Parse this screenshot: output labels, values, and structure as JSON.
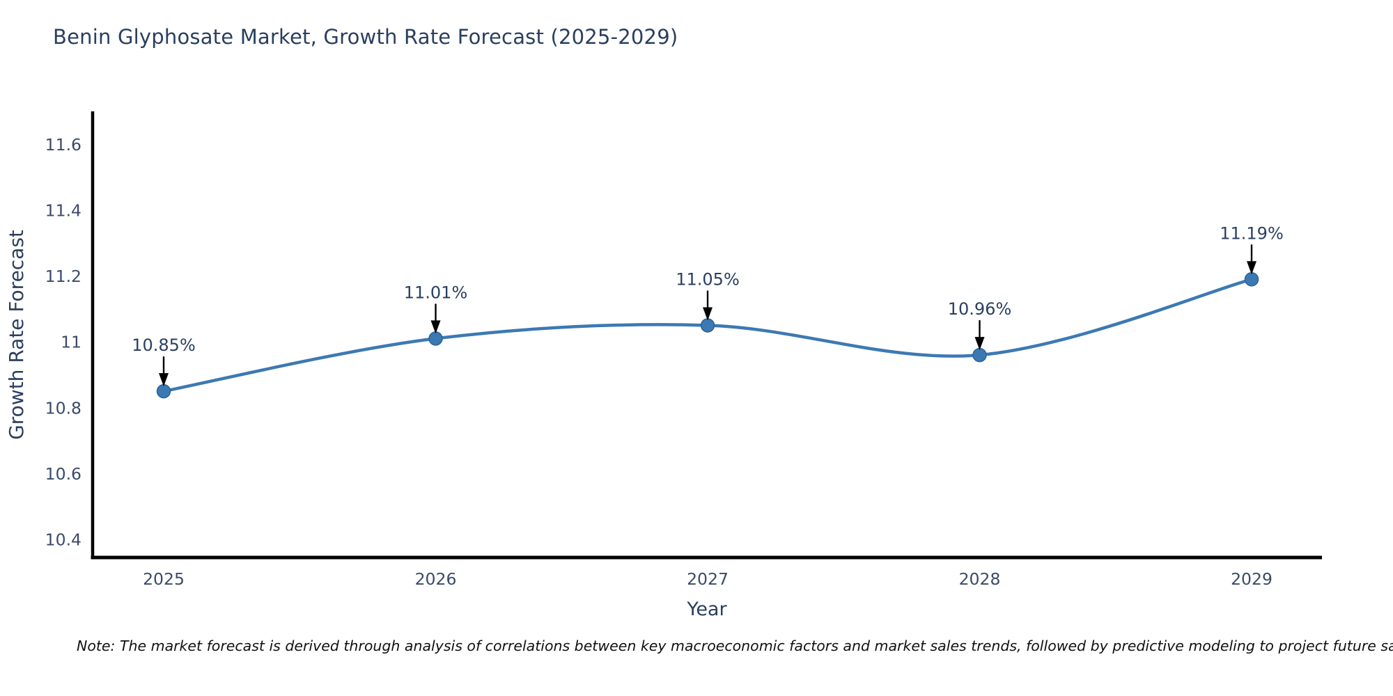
{
  "title": "Benin Glyphosate Market, Growth Rate Forecast (2025-2029)",
  "note": "Note: The market forecast is derived through analysis of correlations between key macroeconomic factors and market sales trends, followed by predictive modeling to project future sal",
  "colors": {
    "line": "#3c79b3",
    "marker_fill": "#3c79b3",
    "marker_edge": "#2a6399",
    "axis_line": "#000000",
    "title_text": "#2a3f5f",
    "tick_text": "#3b4a68",
    "annotation_text": "#2a3f5f",
    "arrow": "#000000",
    "background": "#ffffff"
  },
  "chart_data": {
    "type": "line",
    "title": "Benin Glyphosate Market, Growth Rate Forecast (2025-2029)",
    "xlabel": "Year",
    "ylabel": "Growth Rate Forecast",
    "x": [
      2025,
      2026,
      2027,
      2028,
      2029
    ],
    "series": [
      {
        "name": "Growth Rate Forecast",
        "values": [
          10.85,
          11.01,
          11.05,
          10.96,
          11.19
        ],
        "point_labels": [
          "10.85%",
          "11.01%",
          "11.05%",
          "10.96%",
          "11.19%"
        ]
      }
    ],
    "xtick_labels": [
      "2025",
      "2026",
      "2027",
      "2028",
      "2029"
    ],
    "ytick_values": [
      10.4,
      10.6,
      10.8,
      11,
      11.2,
      11.4,
      11.6
    ],
    "ytick_labels": [
      "10.4",
      "10.6",
      "10.8",
      "11",
      "11.2",
      "11.4",
      "11.6"
    ],
    "ylim": [
      10.345,
      11.7
    ],
    "line_shape": "spline",
    "grid": false,
    "legend": false,
    "annotations": "arrow-down-to-point"
  }
}
